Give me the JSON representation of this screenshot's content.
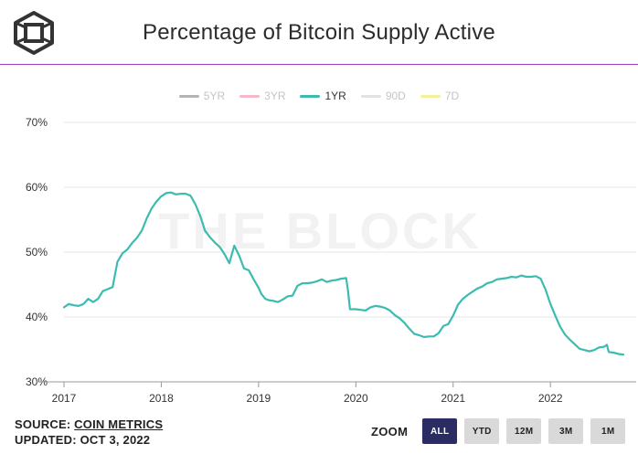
{
  "header": {
    "title": "Percentage of Bitcoin Supply Active",
    "accent_color": "#a23cc4"
  },
  "legend": [
    {
      "label": "5YR",
      "color": "#b3b3b3",
      "active": false
    },
    {
      "label": "3YR",
      "color": "#f5b8c6",
      "active": false
    },
    {
      "label": "1YR",
      "color": "#3cbcb0",
      "active": true
    },
    {
      "label": "90D",
      "color": "#e2e2e2",
      "active": false
    },
    {
      "label": "7D",
      "color": "#f3ef9a",
      "active": false
    }
  ],
  "watermark": "THE BLOCK",
  "chart_data": {
    "type": "line",
    "title": "Percentage of Bitcoin Supply Active",
    "xlabel": "",
    "ylabel": "",
    "xlim": [
      2017.0,
      2022.75
    ],
    "ylim": [
      30,
      70
    ],
    "y_ticks": [
      {
        "value": 30,
        "label": "30%"
      },
      {
        "value": 40,
        "label": "40%"
      },
      {
        "value": 50,
        "label": "50%"
      },
      {
        "value": 60,
        "label": "60%"
      },
      {
        "value": 70,
        "label": "70%"
      }
    ],
    "x_ticks": [
      {
        "value": 2017,
        "label": "2017"
      },
      {
        "value": 2018,
        "label": "2018"
      },
      {
        "value": 2019,
        "label": "2019"
      },
      {
        "value": 2020,
        "label": "2020"
      },
      {
        "value": 2021,
        "label": "2021"
      },
      {
        "value": 2022,
        "label": "2022"
      }
    ],
    "grid": true,
    "series": [
      {
        "name": "1YR",
        "color": "#3cbcb0",
        "x": [
          2017.0,
          2017.05,
          2017.1,
          2017.15,
          2017.2,
          2017.25,
          2017.3,
          2017.35,
          2017.4,
          2017.45,
          2017.5,
          2017.55,
          2017.6,
          2017.65,
          2017.7,
          2017.75,
          2017.8,
          2017.85,
          2017.9,
          2017.95,
          2018.0,
          2018.05,
          2018.1,
          2018.15,
          2018.2,
          2018.25,
          2018.3,
          2018.35,
          2018.4,
          2018.45,
          2018.5,
          2018.55,
          2018.6,
          2018.65,
          2018.7,
          2018.75,
          2018.8,
          2018.85,
          2018.9,
          2018.95,
          2019.0,
          2019.03,
          2019.07,
          2019.1,
          2019.15,
          2019.2,
          2019.25,
          2019.3,
          2019.35,
          2019.4,
          2019.45,
          2019.5,
          2019.55,
          2019.6,
          2019.65,
          2019.7,
          2019.75,
          2019.8,
          2019.85,
          2019.9,
          2019.92,
          2019.94,
          2020.0,
          2020.05,
          2020.1,
          2020.15,
          2020.2,
          2020.25,
          2020.3,
          2020.35,
          2020.4,
          2020.45,
          2020.5,
          2020.55,
          2020.6,
          2020.65,
          2020.7,
          2020.75,
          2020.8,
          2020.85,
          2020.9,
          2020.95,
          2021.0,
          2021.05,
          2021.1,
          2021.15,
          2021.2,
          2021.25,
          2021.3,
          2021.35,
          2021.4,
          2021.45,
          2021.5,
          2021.55,
          2021.6,
          2021.65,
          2021.7,
          2021.75,
          2021.8,
          2021.85,
          2021.9,
          2021.95,
          2022.0,
          2022.05,
          2022.1,
          2022.15,
          2022.2,
          2022.25,
          2022.3,
          2022.35,
          2022.4,
          2022.45,
          2022.5,
          2022.55,
          2022.58,
          2022.6,
          2022.65,
          2022.7,
          2022.75
        ],
        "values": [
          41.5,
          42.0,
          41.8,
          41.7,
          42.0,
          42.8,
          42.3,
          42.8,
          44.0,
          44.3,
          44.6,
          48.5,
          49.8,
          50.4,
          51.4,
          52.2,
          53.3,
          55.2,
          56.7,
          57.8,
          58.6,
          59.1,
          59.2,
          58.9,
          59.0,
          59.0,
          58.7,
          57.4,
          55.6,
          53.3,
          52.3,
          51.5,
          50.8,
          49.7,
          48.3,
          51.0,
          49.5,
          47.5,
          47.2,
          45.8,
          44.5,
          43.5,
          42.8,
          42.6,
          42.5,
          42.3,
          42.7,
          43.2,
          43.3,
          44.8,
          45.2,
          45.2,
          45.3,
          45.5,
          45.8,
          45.4,
          45.6,
          45.7,
          45.9,
          46.0,
          44.0,
          41.2,
          41.2,
          41.1,
          41.0,
          41.5,
          41.7,
          41.6,
          41.4,
          41.0,
          40.3,
          39.8,
          39.1,
          38.2,
          37.4,
          37.2,
          36.9,
          37.0,
          37.0,
          37.5,
          38.6,
          38.9,
          40.2,
          41.9,
          42.8,
          43.4,
          43.9,
          44.4,
          44.7,
          45.2,
          45.4,
          45.8,
          45.9,
          46.0,
          46.2,
          46.1,
          46.4,
          46.2,
          46.2,
          46.3,
          45.9,
          44.2,
          42.0,
          40.2,
          38.5,
          37.3,
          36.5,
          35.8,
          35.1,
          34.9,
          34.7,
          34.9,
          35.3,
          35.4,
          35.7,
          34.6,
          34.5,
          34.3,
          34.2
        ]
      }
    ]
  },
  "footer": {
    "source_prefix": "SOURCE: ",
    "source_link": "COIN METRICS",
    "updated": "UPDATED: OCT 3, 2022"
  },
  "zoom": {
    "label": "ZOOM",
    "buttons": [
      {
        "label": "ALL",
        "active": true
      },
      {
        "label": "YTD",
        "active": false
      },
      {
        "label": "12M",
        "active": false
      },
      {
        "label": "3M",
        "active": false
      },
      {
        "label": "1M",
        "active": false
      }
    ]
  }
}
